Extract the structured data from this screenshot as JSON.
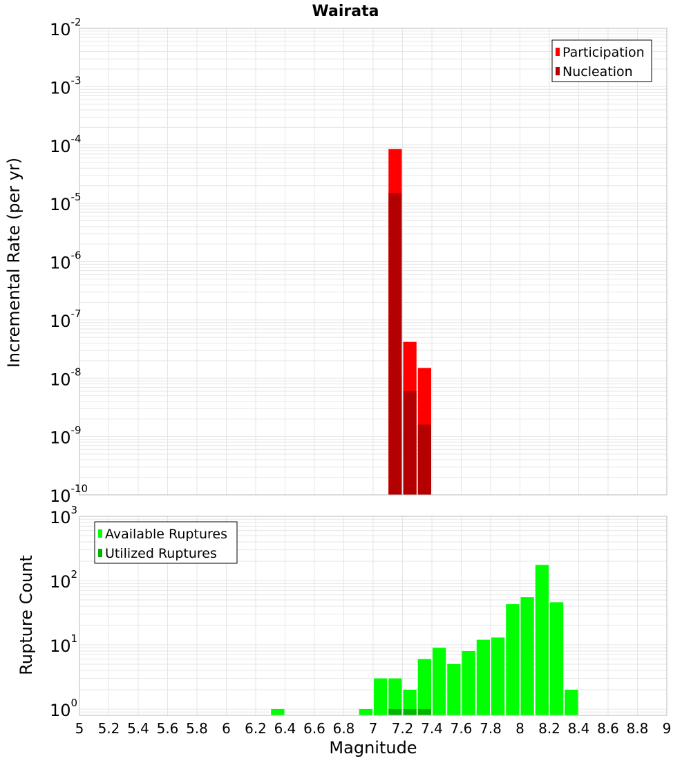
{
  "title": "Wairata",
  "colors": {
    "participation": "#ff0000",
    "nucleation": "#b40000",
    "available": "#00ff00",
    "utilized": "#00b400",
    "grid": "#e6e6e6",
    "frame": "#bbbbbb"
  },
  "chart_data": [
    {
      "type": "bar",
      "panel": "top",
      "ylabel": "Incremental Rate (per yr)",
      "yscale": "log",
      "ylim": [
        1e-10,
        0.01
      ],
      "y_tick_labels": [
        {
          "base": "10",
          "exp": "-10"
        },
        {
          "base": "10",
          "exp": "-9"
        },
        {
          "base": "10",
          "exp": "-8"
        },
        {
          "base": "10",
          "exp": "-7"
        },
        {
          "base": "10",
          "exp": "-6"
        },
        {
          "base": "10",
          "exp": "-5"
        },
        {
          "base": "10",
          "exp": "-4"
        },
        {
          "base": "10",
          "exp": "-3"
        },
        {
          "base": "10",
          "exp": "-2"
        }
      ],
      "legend_position": "top-right",
      "grid": true,
      "bin_width": 0.1,
      "series": [
        {
          "name": "Participation",
          "color": "#ff0000",
          "x": [
            7.15,
            7.25,
            7.35
          ],
          "values": [
            8.5e-05,
            4.2e-08,
            1.5e-08
          ]
        },
        {
          "name": "Nucleation",
          "color": "#b40000",
          "x": [
            7.15,
            7.25,
            7.35
          ],
          "values": [
            1.5e-05,
            6e-09,
            1.6e-09
          ]
        }
      ]
    },
    {
      "type": "bar",
      "panel": "bottom",
      "xlabel": "Magnitude",
      "ylabel": "Rupture Count",
      "yscale": "log",
      "ylim": [
        0.8,
        1000
      ],
      "xlim": [
        5,
        9
      ],
      "x_tick_labels": [
        "5",
        "5.2",
        "5.4",
        "5.6",
        "5.8",
        "6",
        "6.2",
        "6.4",
        "6.6",
        "6.8",
        "7",
        "7.2",
        "7.4",
        "7.6",
        "7.8",
        "8",
        "8.2",
        "8.4",
        "8.6",
        "8.8",
        "9"
      ],
      "y_tick_labels": [
        {
          "base": "10",
          "exp": "0"
        },
        {
          "base": "10",
          "exp": "1"
        },
        {
          "base": "10",
          "exp": "2"
        },
        {
          "base": "10",
          "exp": "3"
        }
      ],
      "legend_position": "top-left",
      "grid": true,
      "bin_width": 0.1,
      "series": [
        {
          "name": "Available Ruptures",
          "color": "#00ff00",
          "x": [
            6.35,
            6.95,
            7.05,
            7.15,
            7.25,
            7.35,
            7.45,
            7.55,
            7.65,
            7.75,
            7.85,
            7.95,
            8.05,
            8.15,
            8.25,
            8.35
          ],
          "values": [
            1,
            1,
            3,
            3,
            2,
            6,
            9,
            5,
            8,
            12,
            13,
            43,
            55,
            175,
            46,
            2
          ]
        },
        {
          "name": "Utilized Ruptures",
          "color": "#00b400",
          "x": [
            7.15,
            7.25,
            7.35
          ],
          "values": [
            1,
            1,
            1
          ]
        }
      ]
    }
  ]
}
